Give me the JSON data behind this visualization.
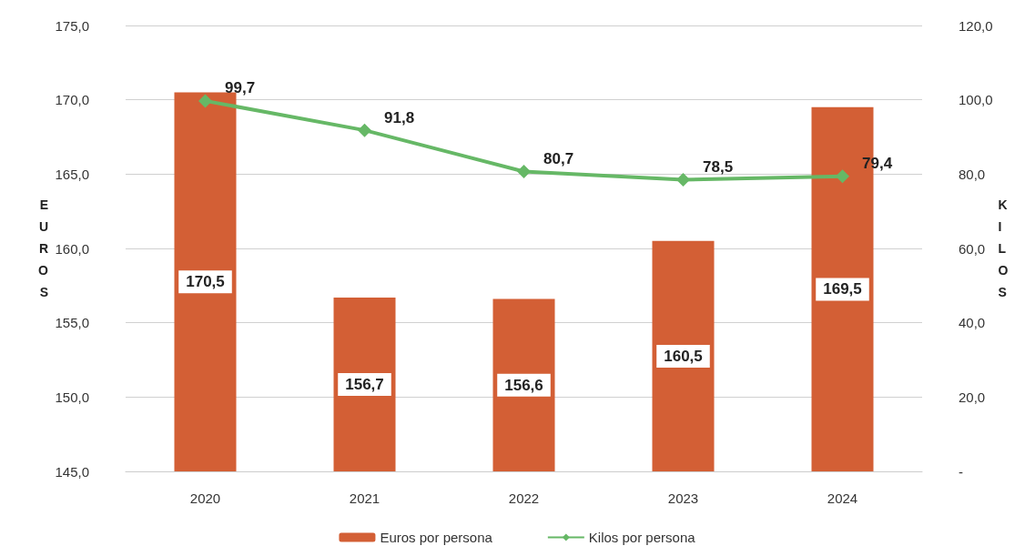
{
  "chart_data": {
    "type": "bar",
    "categories": [
      "2020",
      "2021",
      "2022",
      "2023",
      "2024"
    ],
    "ylabel": "EUROS",
    "y2label": "KILOS",
    "ylim": [
      145,
      175
    ],
    "yticks": [
      {
        "value": 145,
        "label": "145,0"
      },
      {
        "value": 150,
        "label": "150,0"
      },
      {
        "value": 155,
        "label": "155,0"
      },
      {
        "value": 160,
        "label": "160,0"
      },
      {
        "value": 165,
        "label": "165,0"
      },
      {
        "value": 170,
        "label": "170,0"
      },
      {
        "value": 175,
        "label": "175,0"
      }
    ],
    "y2lim": [
      0,
      120
    ],
    "y2ticks": [
      {
        "value": 0,
        "label": "-"
      },
      {
        "value": 20,
        "label": "20,0"
      },
      {
        "value": 40,
        "label": "40,0"
      },
      {
        "value": 60,
        "label": "60,0"
      },
      {
        "value": 80,
        "label": "80,0"
      },
      {
        "value": 100,
        "label": "100,0"
      },
      {
        "value": 120,
        "label": "120,0"
      }
    ],
    "series": [
      {
        "name": "Euros por persona",
        "color": "#d35f35",
        "values": [
          170.5,
          156.7,
          156.6,
          160.5,
          169.5
        ],
        "value_labels": [
          "170,5",
          "156,7",
          "156,6",
          "160,5",
          "169,5"
        ]
      },
      {
        "name": "Kilos por persona",
        "type": "line",
        "axis": "y2",
        "color": "#66b866",
        "marker": "diamond",
        "values": [
          99.7,
          91.8,
          80.7,
          78.5,
          79.4
        ],
        "value_labels": [
          "99,7",
          "91,8",
          "80,7",
          "78,5",
          "79,4"
        ]
      }
    ],
    "grid": "y",
    "legend": "bottom"
  }
}
